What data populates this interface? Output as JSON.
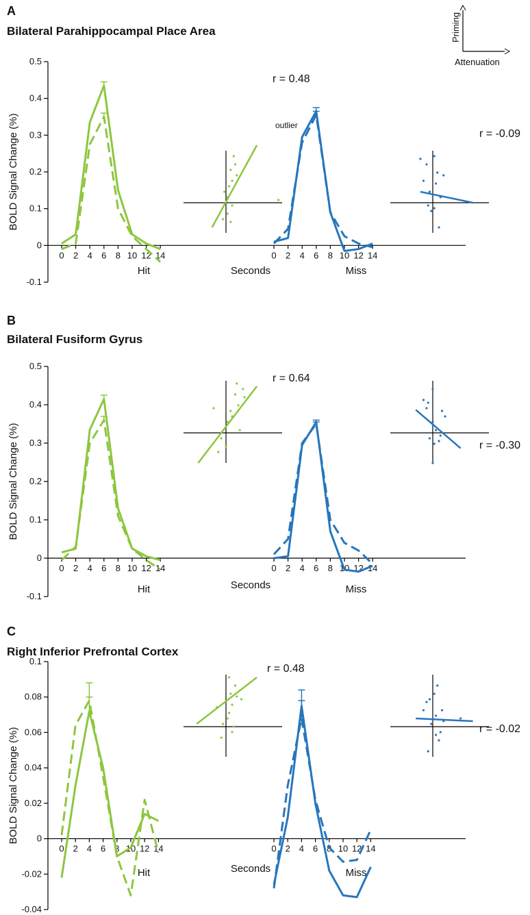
{
  "colors": {
    "hit": "#8dc63f",
    "miss": "#2676bd",
    "axis": "#000000"
  },
  "key": {
    "vertical_label": "Priming",
    "horizontal_label": "Attenuation"
  },
  "chart_data": [
    {
      "type": "line",
      "letter": "A",
      "title": "Bilateral Parahippocampal Place Area",
      "ylabel": "BOLD Signal Change (%)",
      "xlabel": "Seconds",
      "group_labels": [
        "Hit",
        "Miss"
      ],
      "ylim": [
        -0.1,
        0.5
      ],
      "yticks": [
        -0.1,
        0,
        0.1,
        0.2,
        0.3,
        0.4,
        0.5
      ],
      "ytick_labels": [
        "-0.1",
        "0",
        "0.1",
        "0.2",
        "0.3",
        "0.4",
        "0.5"
      ],
      "x": [
        0,
        2,
        4,
        6,
        8,
        10,
        12,
        14
      ],
      "xtick_labels": [
        "0",
        "2",
        "4",
        "6",
        "8",
        "10",
        "12",
        "14"
      ],
      "series": [
        {
          "group": "Hit",
          "style": "solid",
          "values": [
            0.005,
            0.03,
            0.335,
            0.435,
            0.15,
            0.03,
            0.005,
            -0.01
          ],
          "error": [
            null,
            null,
            null,
            0.01,
            null,
            null,
            null,
            null
          ]
        },
        {
          "group": "Hit",
          "style": "dashed",
          "values": [
            -0.01,
            0.005,
            0.275,
            0.35,
            0.1,
            0.025,
            -0.01,
            -0.045
          ],
          "error": [
            null,
            null,
            null,
            0.01,
            null,
            null,
            null,
            null
          ]
        },
        {
          "group": "Miss",
          "style": "solid",
          "values": [
            0.01,
            0.02,
            0.295,
            0.365,
            0.09,
            -0.015,
            -0.01,
            0.005
          ],
          "error": [
            null,
            null,
            null,
            0.01,
            null,
            null,
            null,
            null
          ]
        },
        {
          "group": "Miss",
          "style": "dashed",
          "values": [
            0.005,
            0.045,
            0.28,
            0.355,
            0.09,
            0.025,
            0.005,
            -0.005
          ],
          "error": [
            null,
            null,
            null,
            0.01,
            null,
            null,
            null,
            null
          ]
        }
      ],
      "scatter_hit": {
        "r_label": "r = 0.48",
        "annotation": "outlier",
        "points": [
          [
            0.25,
            0.85
          ],
          [
            0.3,
            0.7
          ],
          [
            0.15,
            0.6
          ],
          [
            0.35,
            0.5
          ],
          [
            0.2,
            0.4
          ],
          [
            0.1,
            0.3
          ],
          [
            -0.05,
            0.2
          ],
          [
            0.05,
            0.1
          ],
          [
            0.2,
            -0.05
          ],
          [
            0.05,
            -0.2
          ],
          [
            0.15,
            -0.35
          ],
          [
            -0.1,
            -0.3
          ],
          [
            1.7,
            0.05
          ]
        ],
        "fit": [
          [
            -0.45,
            -0.45
          ],
          [
            1.0,
            1.05
          ]
        ]
      },
      "scatter_miss": {
        "r_label": "r = -0.09",
        "points": [
          [
            -0.4,
            0.8
          ],
          [
            -0.2,
            0.7
          ],
          [
            0.05,
            0.85
          ],
          [
            0.15,
            0.55
          ],
          [
            0.35,
            0.5
          ],
          [
            -0.3,
            0.4
          ],
          [
            0.1,
            0.35
          ],
          [
            -0.1,
            0.2
          ],
          [
            0.25,
            0.1
          ],
          [
            -0.15,
            -0.05
          ],
          [
            0.05,
            -0.1
          ],
          [
            -0.05,
            -0.15
          ],
          [
            0.2,
            -0.45
          ]
        ],
        "fit": [
          [
            -0.4,
            0.2
          ],
          [
            1.3,
            0.0
          ]
        ]
      }
    },
    {
      "type": "line",
      "letter": "B",
      "title": "Bilateral Fusiform Gyrus",
      "ylabel": "BOLD Signal Change (%)",
      "xlabel": "Seconds",
      "group_labels": [
        "Hit",
        "Miss"
      ],
      "ylim": [
        -0.1,
        0.5
      ],
      "yticks": [
        -0.1,
        0,
        0.1,
        0.2,
        0.3,
        0.4,
        0.5
      ],
      "ytick_labels": [
        "-0.1",
        "0",
        "0.1",
        "0.2",
        "0.3",
        "0.4",
        "0.5"
      ],
      "x": [
        0,
        2,
        4,
        6,
        8,
        10,
        12,
        14
      ],
      "xtick_labels": [
        "0",
        "2",
        "4",
        "6",
        "8",
        "10",
        "12",
        "14"
      ],
      "series": [
        {
          "group": "Hit",
          "style": "solid",
          "values": [
            0.015,
            0.025,
            0.335,
            0.415,
            0.13,
            0.025,
            0.005,
            -0.005
          ],
          "error": [
            null,
            null,
            null,
            0.01,
            null,
            null,
            null,
            null
          ]
        },
        {
          "group": "Hit",
          "style": "dashed",
          "values": [
            -0.005,
            0.03,
            0.3,
            0.36,
            0.11,
            0.025,
            -0.005,
            -0.03
          ],
          "error": [
            null,
            null,
            null,
            0.01,
            null,
            null,
            null,
            null
          ]
        },
        {
          "group": "Miss",
          "style": "solid",
          "values": [
            0.0,
            0.005,
            0.295,
            0.355,
            0.07,
            -0.03,
            -0.035,
            -0.02
          ],
          "error": [
            null,
            null,
            null,
            0.005,
            null,
            null,
            null,
            null
          ]
        },
        {
          "group": "Miss",
          "style": "dashed",
          "values": [
            0.01,
            0.05,
            0.3,
            0.35,
            0.1,
            0.04,
            0.02,
            -0.015
          ],
          "error": [
            null,
            null,
            null,
            0.005,
            null,
            null,
            null,
            null
          ]
        }
      ],
      "scatter_hit": {
        "r_label": "r = 0.64",
        "points": [
          [
            0.35,
            0.9
          ],
          [
            0.55,
            0.8
          ],
          [
            0.3,
            0.7
          ],
          [
            0.6,
            0.65
          ],
          [
            0.4,
            0.5
          ],
          [
            0.15,
            0.4
          ],
          [
            -0.4,
            0.45
          ],
          [
            0.2,
            0.3
          ],
          [
            0.05,
            0.2
          ],
          [
            0.45,
            0.05
          ],
          [
            -0.15,
            -0.1
          ],
          [
            0.0,
            -0.25
          ],
          [
            -0.25,
            -0.35
          ]
        ],
        "fit": [
          [
            -0.9,
            -0.55
          ],
          [
            1.0,
            0.85
          ]
        ]
      },
      "scatter_miss": {
        "r_label": "r = -0.30",
        "points": [
          [
            0.0,
            0.8
          ],
          [
            -0.3,
            0.6
          ],
          [
            -0.15,
            0.55
          ],
          [
            -0.2,
            0.45
          ],
          [
            0.3,
            0.4
          ],
          [
            0.4,
            0.3
          ],
          [
            0.0,
            0.2
          ],
          [
            0.1,
            0.05
          ],
          [
            0.25,
            -0.05
          ],
          [
            -0.1,
            -0.1
          ],
          [
            0.2,
            -0.15
          ],
          [
            0.05,
            -0.2
          ],
          [
            0.0,
            -0.55
          ]
        ],
        "fit": [
          [
            -0.55,
            0.42
          ],
          [
            0.9,
            -0.28
          ]
        ]
      }
    },
    {
      "type": "line",
      "letter": "C",
      "title": "Right Inferior Prefrontal Cortex",
      "ylabel": "BOLD Signal Change (%)",
      "xlabel": "Seconds",
      "group_labels": [
        "Hit",
        "Miss"
      ],
      "ylim": [
        -0.04,
        0.1
      ],
      "yticks": [
        -0.04,
        -0.02,
        0,
        0.02,
        0.04,
        0.06,
        0.08,
        0.1
      ],
      "ytick_labels": [
        "-0.04",
        "-0.02",
        "0",
        "0.02",
        "0.04",
        "0.06",
        "0.08",
        "0.1"
      ],
      "x": [
        0,
        2,
        4,
        6,
        8,
        10,
        12,
        14
      ],
      "xtick_labels": [
        "0",
        "2",
        "4",
        "6",
        "8",
        "10",
        "12",
        "14"
      ],
      "series": [
        {
          "group": "Hit",
          "style": "solid",
          "values": [
            -0.022,
            0.03,
            0.072,
            0.04,
            -0.01,
            -0.005,
            0.014,
            0.01
          ],
          "error": [
            null,
            null,
            0.008,
            null,
            null,
            null,
            null,
            null
          ]
        },
        {
          "group": "Hit",
          "style": "dashed",
          "values": [
            0.002,
            0.064,
            0.078,
            0.035,
            -0.01,
            -0.032,
            0.022,
            -0.008
          ],
          "error": [
            null,
            null,
            0.01,
            null,
            null,
            null,
            null,
            null
          ]
        },
        {
          "group": "Miss",
          "style": "solid",
          "values": [
            -0.026,
            0.012,
            0.075,
            0.02,
            -0.018,
            -0.032,
            -0.033,
            -0.016
          ],
          "error": [
            null,
            null,
            0.009,
            null,
            null,
            null,
            null,
            null
          ]
        },
        {
          "group": "Miss",
          "style": "dashed",
          "values": [
            -0.028,
            0.03,
            0.068,
            0.022,
            -0.005,
            -0.013,
            -0.012,
            0.005
          ],
          "error": [
            null,
            null,
            0.01,
            null,
            null,
            null,
            null,
            null
          ]
        }
      ],
      "scatter_hit": {
        "r_label": "r = 0.48",
        "points": [
          [
            0.1,
            0.9
          ],
          [
            0.3,
            0.75
          ],
          [
            0.15,
            0.6
          ],
          [
            0.35,
            0.55
          ],
          [
            0.5,
            0.5
          ],
          [
            0.2,
            0.4
          ],
          [
            -0.3,
            0.35
          ],
          [
            0.1,
            0.25
          ],
          [
            0.05,
            0.15
          ],
          [
            -0.1,
            0.05
          ],
          [
            0.2,
            -0.1
          ],
          [
            -0.15,
            -0.2
          ],
          [
            0.25,
            0.0
          ]
        ],
        "fit": [
          [
            -0.95,
            0.05
          ],
          [
            1.0,
            0.9
          ]
        ]
      },
      "scatter_miss": {
        "r_label": "r = -0.02",
        "points": [
          [
            -0.1,
            0.5
          ],
          [
            0.05,
            0.6
          ],
          [
            -0.2,
            0.45
          ],
          [
            0.15,
            0.75
          ],
          [
            0.3,
            0.3
          ],
          [
            -0.3,
            0.3
          ],
          [
            0.1,
            0.2
          ],
          [
            0.35,
            0.1
          ],
          [
            -0.05,
            0.05
          ],
          [
            0.25,
            -0.1
          ],
          [
            0.1,
            -0.15
          ],
          [
            0.2,
            -0.25
          ],
          [
            -0.15,
            -0.45
          ],
          [
            0.9,
            0.15
          ]
        ],
        "fit": [
          [
            -0.55,
            0.15
          ],
          [
            1.3,
            0.1
          ]
        ]
      }
    }
  ]
}
